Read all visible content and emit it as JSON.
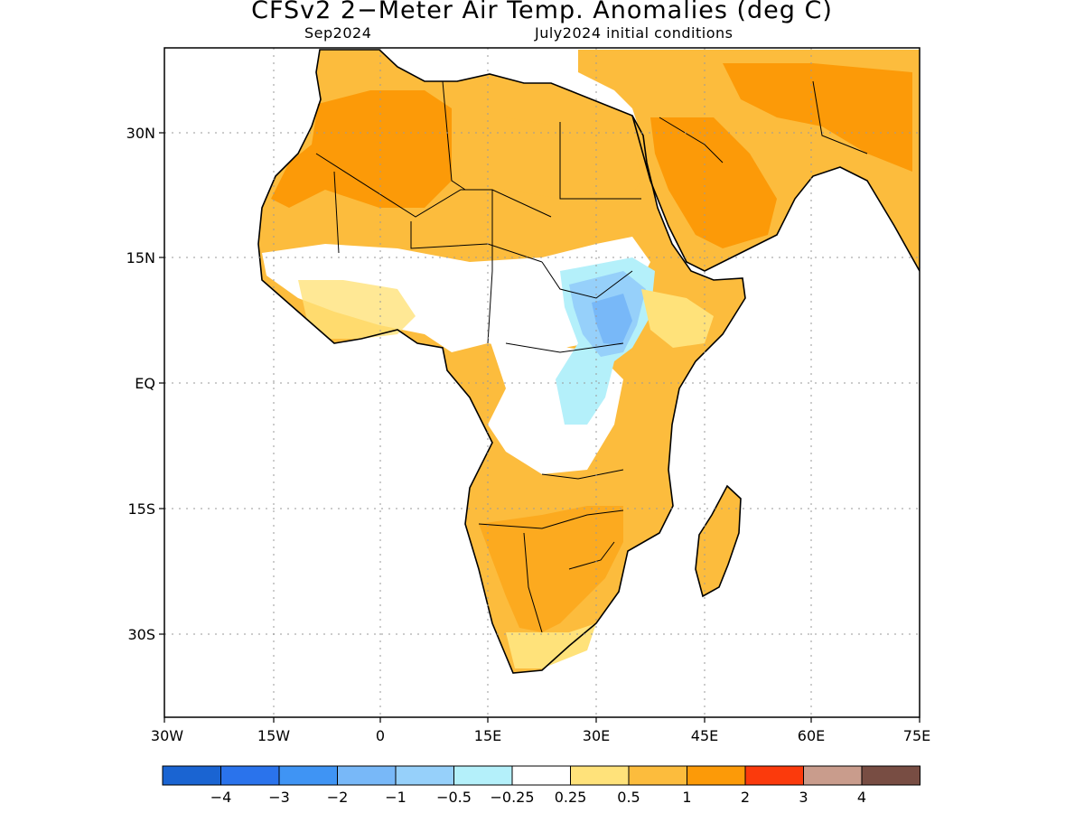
{
  "title": "CFSv2 2−Meter Air Temp. Anomalies (deg C)",
  "subtitle_left": "Sep2024",
  "subtitle_right": "July2024 initial conditions",
  "map": {
    "region": "Africa",
    "lon_range": [
      -30,
      75
    ],
    "lat_range": [
      -40,
      40
    ],
    "lat_labels": [
      "30N",
      "15N",
      "EQ",
      "15S",
      "30S"
    ],
    "lon_labels": [
      "30W",
      "15W",
      "0",
      "15E",
      "30E",
      "45E",
      "60E",
      "75E"
    ],
    "gridlines": "dotted"
  },
  "legend": {
    "colors": [
      "#1a64d2",
      "#2a73ec",
      "#3f94f4",
      "#78b8f8",
      "#96d0fa",
      "#b4f0fa",
      "#ffffff",
      "#ffe27a",
      "#fcbc3d",
      "#fc9a08",
      "#fb3a0c",
      "#c99c8c",
      "#784d43"
    ],
    "labels": [
      "−4",
      "−3",
      "−2",
      "−1",
      "−0.5",
      "−0.25",
      "0.25",
      "0.5",
      "1",
      "2",
      "3",
      "4"
    ]
  }
}
